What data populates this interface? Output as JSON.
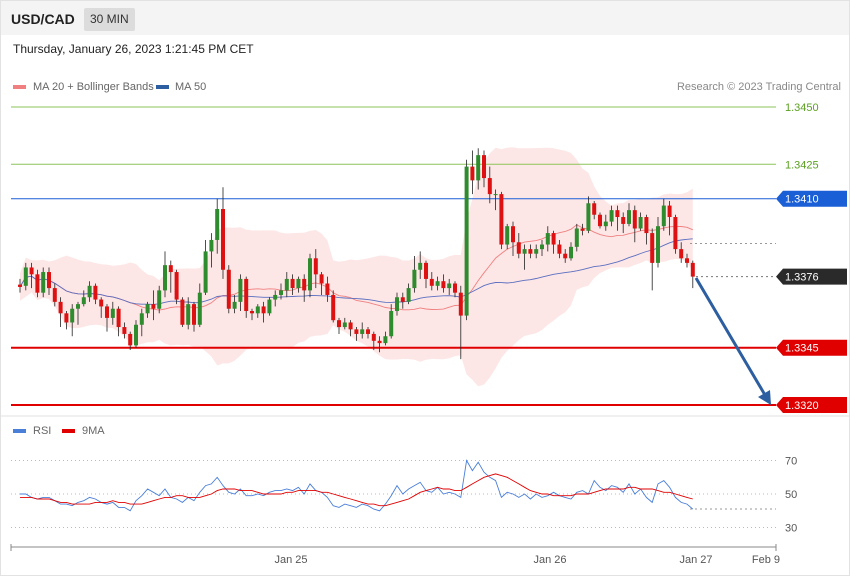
{
  "header": {
    "symbol": "USD/CAD",
    "timeframe": "30 MIN",
    "datetime": "Thursday, January 26, 2023 1:21:45 PM CET"
  },
  "legend": {
    "ma20_label": "MA 20 + Bollinger Bands",
    "ma50_label": "MA 50",
    "credit": "Research © 2023 Trading Central",
    "rsi_label": "RSI",
    "rsi_ma_label": "9MA"
  },
  "colors": {
    "bull": "#2e8b2e",
    "bear": "#dd1111",
    "ma20": "#f08080",
    "ma50": "#5a6fc0",
    "band_fill": "#fde3e3",
    "resistance": "#8dc45a",
    "support": "#e00000",
    "current_line": "#1a5fd6",
    "arrow": "#2c5ea0"
  },
  "chart_data": {
    "type": "candlestick",
    "symbol": "USD/CAD",
    "timeframe": "30 MIN",
    "ylim": [
      1.3305,
      1.346
    ],
    "levels": [
      {
        "value": "1.3450",
        "kind": "resistance"
      },
      {
        "value": "1.3425",
        "kind": "resistance"
      },
      {
        "value": "1.3410",
        "kind": "pivot"
      },
      {
        "value": "1.3376",
        "kind": "last"
      },
      {
        "value": "1.3345",
        "kind": "support"
      },
      {
        "value": "1.3320",
        "kind": "support"
      }
    ],
    "x_ticks": [
      "Jan 25",
      "Jan 26",
      "Jan 27",
      "Feb 9"
    ],
    "candles": [
      [
        1.33725,
        1.33715,
        1.3375,
        1.3369
      ],
      [
        1.3372,
        1.338,
        1.3382,
        1.337
      ],
      [
        1.338,
        1.3377,
        1.3382,
        1.3371
      ],
      [
        1.3377,
        1.3369,
        1.3379,
        1.3367
      ],
      [
        1.3369,
        1.3378,
        1.338,
        1.3367
      ],
      [
        1.3378,
        1.3371,
        1.338,
        1.3368
      ],
      [
        1.3371,
        1.3365,
        1.3373,
        1.3363
      ],
      [
        1.3365,
        1.336,
        1.3367,
        1.3354
      ],
      [
        1.336,
        1.3356,
        1.3361,
        1.3353
      ],
      [
        1.3356,
        1.3362,
        1.3364,
        1.335
      ],
      [
        1.3362,
        1.3364,
        1.3365,
        1.3355
      ],
      [
        1.3364,
        1.3367,
        1.337,
        1.3363
      ],
      [
        1.3367,
        1.3372,
        1.3374,
        1.3365
      ],
      [
        1.3372,
        1.3366,
        1.3373,
        1.3364
      ],
      [
        1.3366,
        1.3363,
        1.3367,
        1.3358
      ],
      [
        1.3363,
        1.3358,
        1.3364,
        1.3352
      ],
      [
        1.3358,
        1.3362,
        1.3365,
        1.3355
      ],
      [
        1.3362,
        1.3354,
        1.3363,
        1.335
      ],
      [
        1.3354,
        1.3351,
        1.3356,
        1.3349
      ],
      [
        1.3351,
        1.3346,
        1.3352,
        1.3344
      ],
      [
        1.3346,
        1.3355,
        1.3357,
        1.3345
      ],
      [
        1.3355,
        1.336,
        1.3362,
        1.335
      ],
      [
        1.336,
        1.3364,
        1.3365,
        1.3358
      ],
      [
        1.3364,
        1.3362,
        1.337,
        1.3357
      ],
      [
        1.3362,
        1.337,
        1.3372,
        1.336
      ],
      [
        1.337,
        1.3381,
        1.3387,
        1.3367
      ],
      [
        1.3381,
        1.3378,
        1.3383,
        1.3369
      ],
      [
        1.3378,
        1.3366,
        1.3379,
        1.3364
      ],
      [
        1.3366,
        1.3355,
        1.3367,
        1.3354
      ],
      [
        1.3355,
        1.3364,
        1.3367,
        1.3353
      ],
      [
        1.3364,
        1.3355,
        1.3365,
        1.3352
      ],
      [
        1.3355,
        1.3369,
        1.3373,
        1.3354
      ],
      [
        1.3369,
        1.3387,
        1.3392,
        1.3368
      ],
      [
        1.3387,
        1.3392,
        1.3395,
        1.338
      ],
      [
        1.3392,
        1.34055,
        1.341,
        1.3386
      ],
      [
        1.34055,
        1.3379,
        1.3415,
        1.3375
      ],
      [
        1.3379,
        1.3362,
        1.3381,
        1.336
      ],
      [
        1.3362,
        1.3365,
        1.3368,
        1.336
      ],
      [
        1.3365,
        1.3375,
        1.3377,
        1.3361
      ],
      [
        1.3375,
        1.3361,
        1.3376,
        1.3358
      ],
      [
        1.3361,
        1.336,
        1.3362,
        1.3357
      ],
      [
        1.336,
        1.3363,
        1.3364,
        1.3358
      ],
      [
        1.3363,
        1.336,
        1.3365,
        1.3356
      ],
      [
        1.336,
        1.3366,
        1.3367,
        1.3359
      ],
      [
        1.3366,
        1.3368,
        1.337,
        1.3363
      ],
      [
        1.3368,
        1.337,
        1.3373,
        1.3366
      ],
      [
        1.337,
        1.3375,
        1.3378,
        1.3367
      ],
      [
        1.3375,
        1.3371,
        1.3377,
        1.3368
      ],
      [
        1.3371,
        1.3375,
        1.3376,
        1.3369
      ],
      [
        1.3375,
        1.337,
        1.3377,
        1.3365
      ],
      [
        1.337,
        1.3384,
        1.3386,
        1.3367
      ],
      [
        1.3384,
        1.3377,
        1.3388,
        1.3371
      ],
      [
        1.3377,
        1.3373,
        1.3378,
        1.3368
      ],
      [
        1.3373,
        1.3368,
        1.3376,
        1.3365
      ],
      [
        1.3368,
        1.3357,
        1.337,
        1.3356
      ],
      [
        1.3357,
        1.3354,
        1.3358,
        1.3351
      ],
      [
        1.3354,
        1.3356,
        1.3358,
        1.3353
      ],
      [
        1.3356,
        1.3353,
        1.3357,
        1.335
      ],
      [
        1.3353,
        1.3351,
        1.3354,
        1.3348
      ],
      [
        1.3351,
        1.3353,
        1.3356,
        1.3349
      ],
      [
        1.3353,
        1.3351,
        1.3354,
        1.3349
      ],
      [
        1.3351,
        1.3348,
        1.3352,
        1.3344
      ],
      [
        1.3348,
        1.3347,
        1.335,
        1.3343
      ],
      [
        1.3347,
        1.335,
        1.3352,
        1.3346
      ],
      [
        1.335,
        1.3361,
        1.3364,
        1.3349
      ],
      [
        1.3361,
        1.3367,
        1.3369,
        1.3359
      ],
      [
        1.3367,
        1.3365,
        1.3369,
        1.3362
      ],
      [
        1.3365,
        1.3371,
        1.3373,
        1.3364
      ],
      [
        1.3371,
        1.3379,
        1.3385,
        1.3369
      ],
      [
        1.3379,
        1.3382,
        1.3387,
        1.3375
      ],
      [
        1.3382,
        1.3375,
        1.3383,
        1.3371
      ],
      [
        1.3375,
        1.3372,
        1.3378,
        1.337
      ],
      [
        1.3372,
        1.3374,
        1.3376,
        1.337
      ],
      [
        1.3374,
        1.3371,
        1.3377,
        1.3369
      ],
      [
        1.3371,
        1.3373,
        1.3375,
        1.3368
      ],
      [
        1.3373,
        1.3369,
        1.3374,
        1.3367
      ],
      [
        1.3369,
        1.3359,
        1.3372,
        1.334
      ],
      [
        1.3359,
        1.3424,
        1.3427,
        1.3357
      ],
      [
        1.3424,
        1.3418,
        1.3431,
        1.3412
      ],
      [
        1.3418,
        1.3429,
        1.3432,
        1.3414
      ],
      [
        1.3429,
        1.3419,
        1.3431,
        1.3415
      ],
      [
        1.3419,
        1.3412,
        1.3424,
        1.3408
      ],
      [
        1.3412,
        1.3412,
        1.3414,
        1.3405
      ],
      [
        1.3412,
        1.339,
        1.3413,
        1.3388
      ],
      [
        1.339,
        1.3398,
        1.3399,
        1.3388
      ],
      [
        1.3398,
        1.3391,
        1.34,
        1.3385
      ],
      [
        1.3391,
        1.3386,
        1.3395,
        1.3384
      ],
      [
        1.3386,
        1.3388,
        1.339,
        1.3379
      ],
      [
        1.3388,
        1.3386,
        1.339,
        1.3384
      ],
      [
        1.3386,
        1.3388,
        1.339,
        1.3384
      ],
      [
        1.3388,
        1.339,
        1.3392,
        1.3385
      ],
      [
        1.339,
        1.3395,
        1.3398,
        1.3387
      ],
      [
        1.3395,
        1.339,
        1.3396,
        1.3386
      ],
      [
        1.339,
        1.3386,
        1.3392,
        1.3384
      ],
      [
        1.3386,
        1.3384,
        1.3388,
        1.3382
      ],
      [
        1.3384,
        1.3389,
        1.3391,
        1.3383
      ],
      [
        1.3389,
        1.3397,
        1.3399,
        1.3387
      ],
      [
        1.3397,
        1.3396,
        1.3399,
        1.3394
      ],
      [
        1.3396,
        1.3408,
        1.3411,
        1.3395
      ],
      [
        1.3408,
        1.3403,
        1.3409,
        1.3401
      ],
      [
        1.3403,
        1.3398,
        1.3404,
        1.3397
      ],
      [
        1.3398,
        1.34,
        1.3403,
        1.3396
      ],
      [
        1.34,
        1.3405,
        1.3407,
        1.3398
      ],
      [
        1.3405,
        1.3402,
        1.3407,
        1.3396
      ],
      [
        1.3402,
        1.3399,
        1.3404,
        1.3395
      ],
      [
        1.3399,
        1.3405,
        1.3408,
        1.3398
      ],
      [
        1.3405,
        1.3397,
        1.3407,
        1.3391
      ],
      [
        1.3397,
        1.3402,
        1.3404,
        1.3396
      ],
      [
        1.3402,
        1.3395,
        1.3403,
        1.339
      ],
      [
        1.3395,
        1.3382,
        1.3397,
        1.337
      ],
      [
        1.3382,
        1.3398,
        1.3402,
        1.338
      ],
      [
        1.3398,
        1.3407,
        1.341,
        1.3396
      ],
      [
        1.3407,
        1.3402,
        1.3409,
        1.3394
      ],
      [
        1.3402,
        1.3388,
        1.3403,
        1.3386
      ],
      [
        1.3388,
        1.3384,
        1.3391,
        1.3382
      ],
      [
        1.3384,
        1.3382,
        1.3386,
        1.338
      ],
      [
        1.3382,
        1.3376,
        1.3383,
        1.3371
      ]
    ],
    "rsi": [
      50,
      50,
      48,
      47,
      48,
      48,
      46,
      44,
      44,
      43,
      45,
      46,
      48,
      47,
      45,
      44,
      45,
      42,
      42,
      40,
      46,
      49,
      53,
      51,
      49,
      53,
      48,
      47,
      45,
      48,
      46,
      51,
      55,
      56,
      60,
      55,
      51,
      50,
      53,
      49,
      49,
      50,
      49,
      51,
      52,
      52,
      53,
      52,
      54,
      50,
      56,
      52,
      51,
      48,
      43,
      42,
      44,
      43,
      42,
      44,
      43,
      41,
      40,
      44,
      49,
      55,
      50,
      53,
      55,
      57,
      52,
      51,
      54,
      50,
      51,
      50,
      48,
      70,
      64,
      69,
      63,
      60,
      58,
      48,
      51,
      50,
      48,
      50,
      47,
      50,
      48,
      49,
      51,
      49,
      48,
      47,
      51,
      52,
      50,
      58,
      54,
      52,
      55,
      54,
      51,
      56,
      50,
      53,
      48,
      45,
      56,
      58,
      54,
      48,
      45,
      44,
      41
    ],
    "rsi_ma": [
      48,
      48,
      48,
      47,
      47,
      47,
      46,
      45,
      45,
      44,
      44,
      44,
      44,
      45,
      45,
      45,
      46,
      45,
      45,
      44,
      44,
      44,
      45,
      46,
      47,
      48,
      48,
      49,
      49,
      48,
      48,
      48,
      49,
      50,
      52,
      53,
      53,
      53,
      52,
      52,
      52,
      51,
      50,
      50,
      50,
      50,
      51,
      51,
      52,
      52,
      52,
      52,
      51,
      51,
      50,
      49,
      48,
      47,
      46,
      45,
      44,
      44,
      43,
      43,
      44,
      45,
      46,
      47,
      49,
      51,
      52,
      53,
      54,
      53,
      53,
      52,
      52,
      54,
      56,
      58,
      60,
      61,
      62,
      61,
      60,
      58,
      56,
      54,
      52,
      51,
      50,
      50,
      49,
      49,
      49,
      49,
      50,
      50,
      50,
      51,
      52,
      53,
      53,
      53,
      53,
      54,
      54,
      53,
      53,
      53,
      52,
      51,
      51,
      50,
      49,
      48,
      47
    ],
    "rsi_levels": [
      "70",
      "50",
      "30"
    ]
  }
}
